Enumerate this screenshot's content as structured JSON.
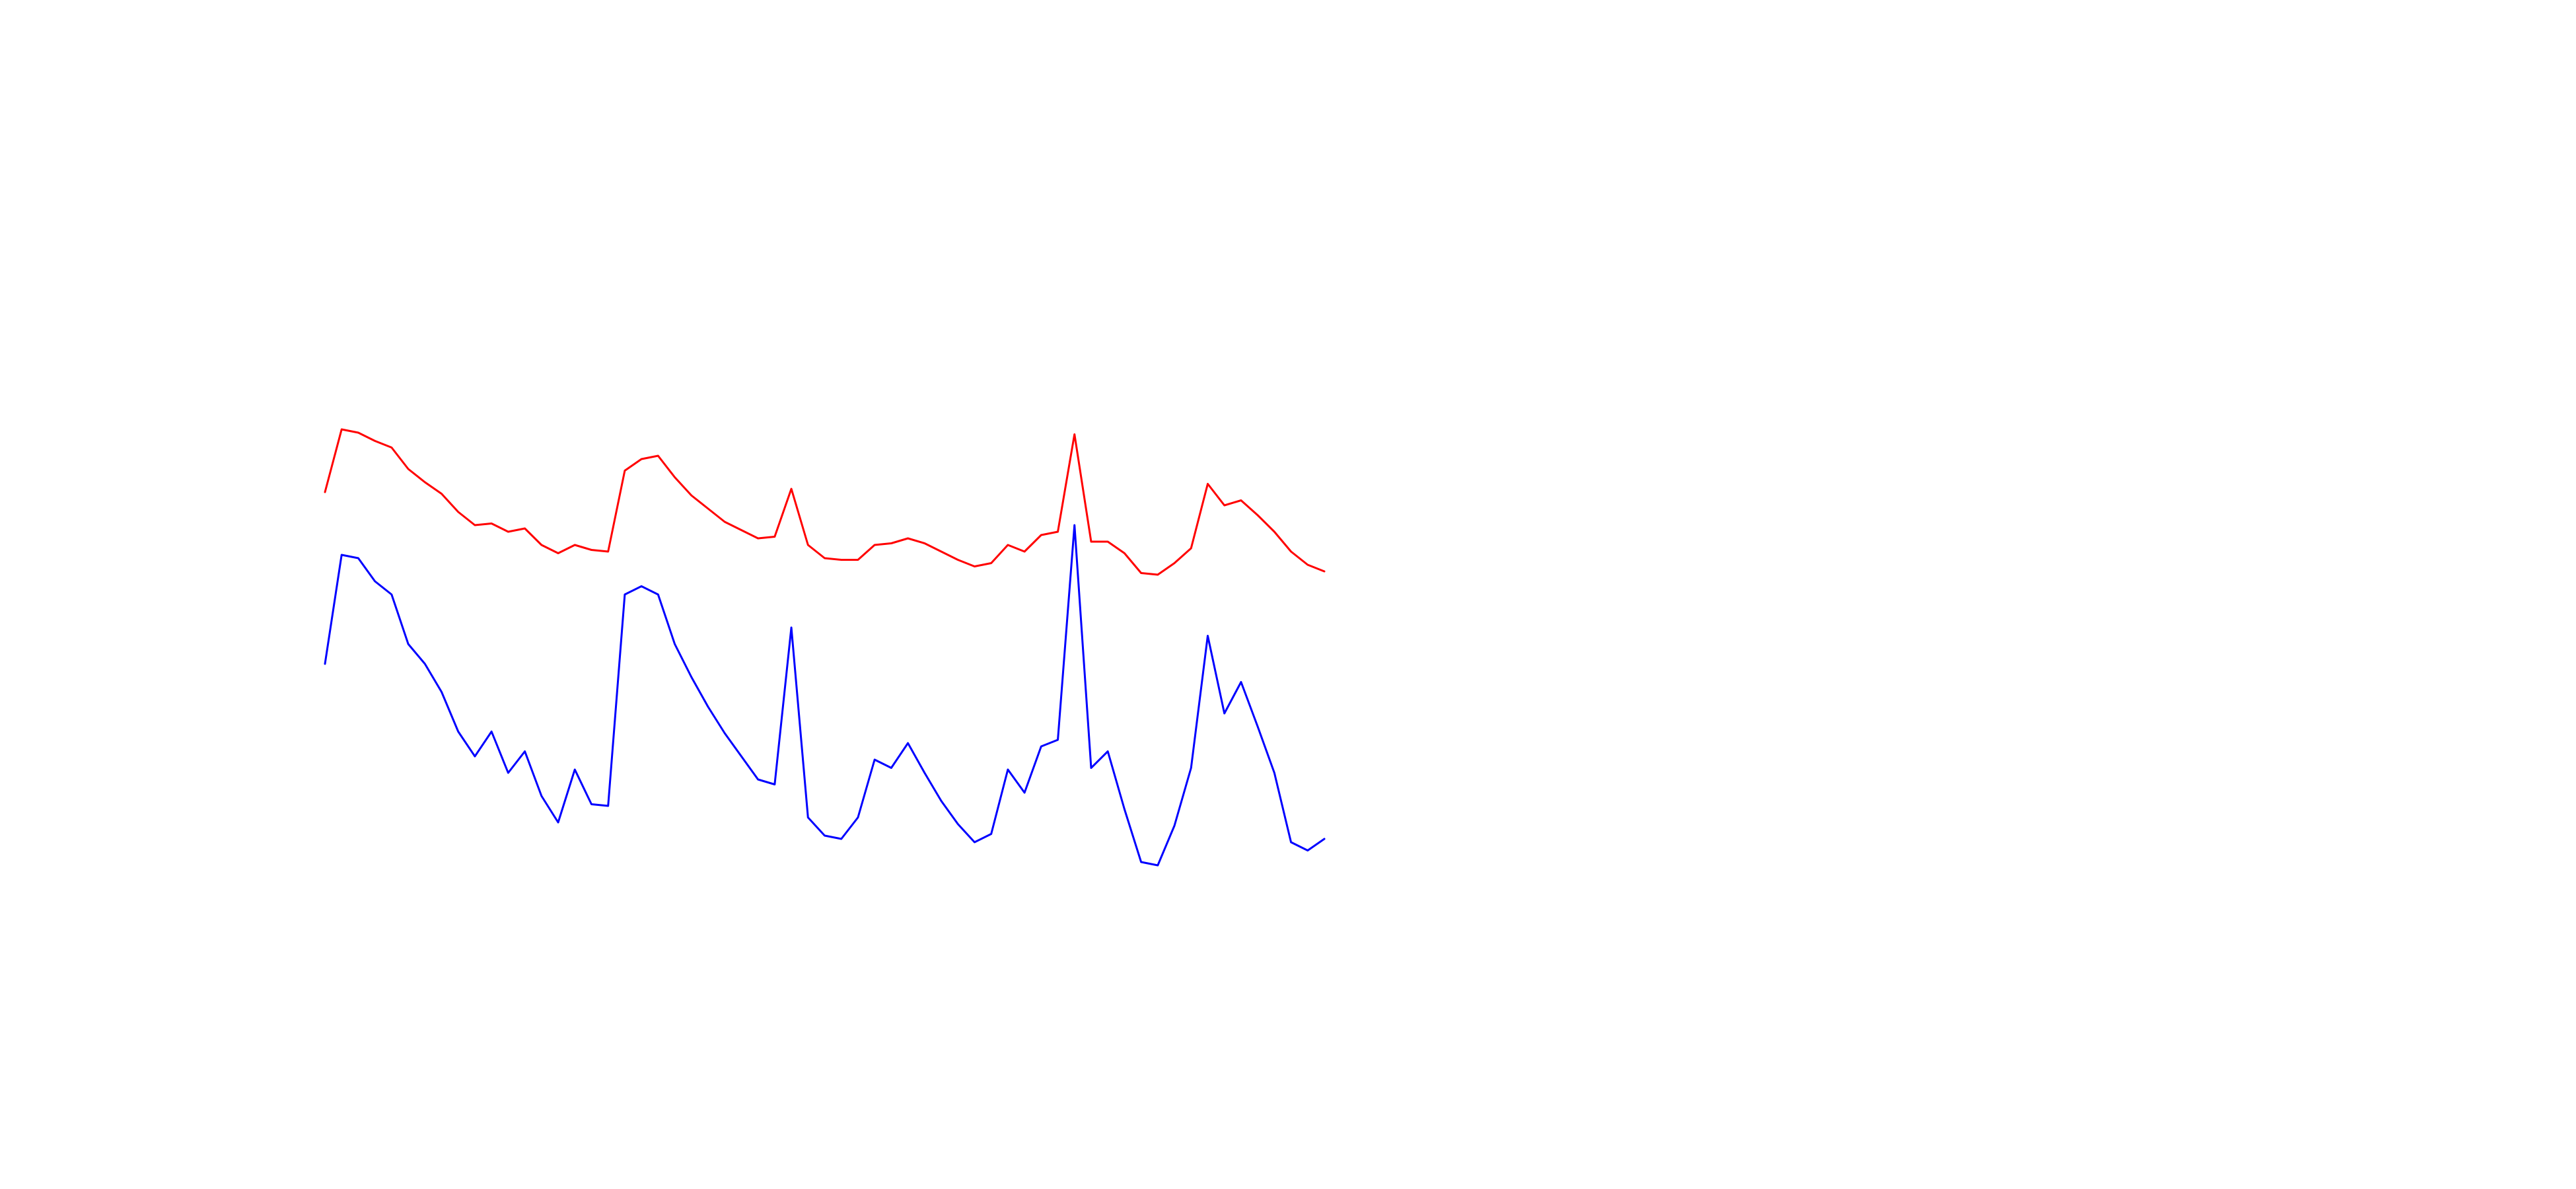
{
  "chart_data": {
    "type": "line",
    "ylim": [
      0,
      720
    ],
    "series": [
      {
        "color": "#ff0000",
        "values": [
          422,
          460,
          458,
          453,
          449,
          436,
          428,
          421,
          410,
          402,
          403,
          398,
          400,
          390,
          385,
          390,
          387,
          386,
          435,
          442,
          444,
          431,
          420,
          412,
          404,
          399,
          394,
          395,
          424,
          390,
          382,
          381,
          381,
          390,
          391,
          394,
          391,
          386,
          381,
          377,
          379,
          390,
          386,
          396,
          398,
          457,
          392,
          392,
          385,
          373,
          372,
          379,
          388,
          427,
          414,
          417,
          408,
          398,
          386,
          378,
          374
        ]
      },
      {
        "color": "#0000ff",
        "values": [
          318,
          384,
          382,
          368,
          360,
          330,
          318,
          301,
          277,
          262,
          277,
          252,
          265,
          238,
          222,
          254,
          233,
          232,
          360,
          365,
          360,
          330,
          310,
          292,
          276,
          262,
          248,
          245,
          340,
          225,
          214,
          212,
          225,
          260,
          255,
          270,
          252,
          235,
          221,
          210,
          215,
          254,
          240,
          268,
          272,
          402,
          255,
          265,
          230,
          198,
          196,
          220,
          255,
          335,
          288,
          307,
          280,
          252,
          210,
          205,
          212
        ]
      }
    ]
  }
}
